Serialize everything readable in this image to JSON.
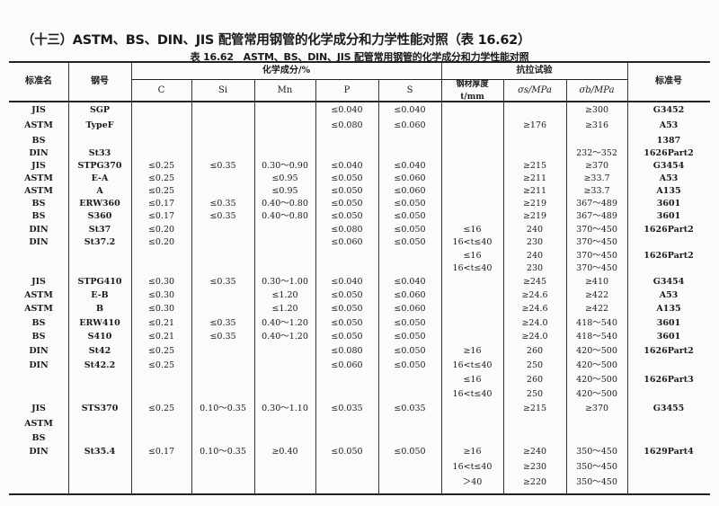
{
  "section_title": "（十三）ASTM、BS、DIN、JIS 配管常用钢管的化学成分和力学性能对照（表 16.62）",
  "table_caption": "表 16.62　ASTM、BS、DIN、JIS 配管常用钢管的化学成分和力学性能对照",
  "headers": {
    "standard": "标准名",
    "grade": "钢号",
    "chem_group": "化学成分/%",
    "tensile_group": "抗拉试验",
    "C": "C",
    "Si": "Si",
    "Mn": "Mn",
    "P": "P",
    "S": "S",
    "thickness": "钢材厚度 t/mm",
    "sigma_s": "σs/MPa",
    "sigma_b": "σb/MPa",
    "std_no": "标准号"
  },
  "rows": [
    [
      "JIS",
      "SGP",
      "",
      "",
      "",
      "≤0.040",
      "≤0.040",
      "",
      "",
      "≥300",
      "G3452"
    ],
    [
      "ASTM",
      "TypeF",
      "",
      "",
      "",
      "≤0.080",
      "≤0.060",
      "",
      "≥176",
      "≥316",
      "A53"
    ],
    [
      "BS",
      "",
      "",
      "",
      "",
      "",
      "",
      "",
      "",
      "",
      "1387"
    ],
    [
      "DIN",
      "St33",
      "",
      "",
      "",
      "",
      "",
      "",
      "",
      "232～352",
      "1626Part2"
    ],
    [
      "JIS",
      "STPG370",
      "≤0.25",
      "≤0.35",
      "0.30～0.90",
      "≤0.040",
      "≤0.040",
      "",
      "≥215",
      "≥370",
      "G3454"
    ],
    [
      "ASTM",
      "E-A",
      "≤0.25",
      "",
      "≤0.95",
      "≤0.050",
      "≤0.060",
      "",
      "≥211",
      "≥33.7",
      "A53"
    ],
    [
      "ASTM",
      "A",
      "≤0.25",
      "",
      "≤0.95",
      "≤0.050",
      "≤0.060",
      "",
      "≥211",
      "≥33.7",
      "A135"
    ],
    [
      "BS",
      "ERW360",
      "≤0.17",
      "≤0.35",
      "0.40～0.80",
      "≤0.050",
      "≤0.050",
      "",
      "≥219",
      "367～489",
      "3601"
    ],
    [
      "BS",
      "S360",
      "≤0.17",
      "≤0.35",
      "0.40～0.80",
      "≤0.050",
      "≤0.050",
      "",
      "≥219",
      "367～489",
      "3601"
    ],
    [
      "DIN",
      "St37",
      "≤0.20",
      "",
      "",
      "≤0.080",
      "≤0.050",
      "≤16",
      "240",
      "370～450",
      "1626Part2"
    ],
    [
      "DIN",
      "St37.2",
      "≤0.20",
      "",
      "",
      "≤0.060",
      "≤0.050",
      "16<t≤40",
      "230",
      "370～450",
      ""
    ],
    [
      "",
      "",
      "",
      "",
      "",
      "",
      "",
      "≤16",
      "240",
      "370～450",
      "1626Part2"
    ],
    [
      "",
      "",
      "",
      "",
      "",
      "",
      "",
      "16<t≤40",
      "230",
      "370～450",
      ""
    ],
    [
      "JIS",
      "STPG410",
      "≤0.30",
      "≤0.35",
      "0.30～1.00",
      "≤0.040",
      "≤0.040",
      "",
      "≥245",
      "≥410",
      "G3454"
    ],
    [
      "ASTM",
      "E-B",
      "≤0.30",
      "",
      "≤1.20",
      "≤0.050",
      "≤0.060",
      "",
      "≥24.6",
      "≥422",
      "A53"
    ],
    [
      "ASTM",
      "B",
      "≤0.30",
      "",
      "≤1.20",
      "≤0.050",
      "≤0.060",
      "",
      "≥24.6",
      "≥422",
      "A135"
    ],
    [
      "BS",
      "ERW410",
      "≤0.21",
      "≤0.35",
      "0.40～1.20",
      "≤0.050",
      "≤0.050",
      "",
      "≥24.0",
      "418～540",
      "3601"
    ],
    [
      "BS",
      "S410",
      "≤0.21",
      "≤0.35",
      "0.40～1.20",
      "≤0.050",
      "≤0.050",
      "",
      "≥24.0",
      "418～540",
      "3601"
    ],
    [
      "DIN",
      "St42",
      "≤0.25",
      "",
      "",
      "≤0.080",
      "≤0.050",
      "≥16",
      "260",
      "420～500",
      "1626Part2"
    ],
    [
      "DIN",
      "St42.2",
      "≤0.25",
      "",
      "",
      "≤0.060",
      "≤0.050",
      "16<t≤40",
      "250",
      "420～500",
      ""
    ],
    [
      "",
      "",
      "",
      "",
      "",
      "",
      "",
      "≤16",
      "260",
      "420～500",
      "1626Part3"
    ],
    [
      "",
      "",
      "",
      "",
      "",
      "",
      "",
      "16<t≤40",
      "250",
      "420～500",
      ""
    ],
    [
      "JIS",
      "STS370",
      "≤0.25",
      "0.10～0.35",
      "0.30～1.10",
      "≤0.035",
      "≤0.035",
      "",
      "≥215",
      "≥370",
      "G3455"
    ],
    [
      "ASTM",
      "",
      "",
      "",
      "",
      "",
      "",
      "",
      "",
      "",
      ""
    ],
    [
      "BS",
      "",
      "",
      "",
      "",
      "",
      "",
      "",
      "",
      "",
      ""
    ],
    [
      "DIN",
      "St35.4",
      "≤0.17",
      "0.10～0.35",
      "≥0.40",
      "≤0.050",
      "≤0.050",
      "≥16",
      "≥240",
      "350～450",
      "1629Part4"
    ],
    [
      "",
      "",
      "",
      "",
      "",
      "",
      "",
      "16<t≤40",
      "≥230",
      "350～450",
      ""
    ],
    [
      "",
      "",
      "",
      "",
      "",
      "",
      "",
      "＞40",
      "≥220",
      "350～450",
      ""
    ]
  ]
}
